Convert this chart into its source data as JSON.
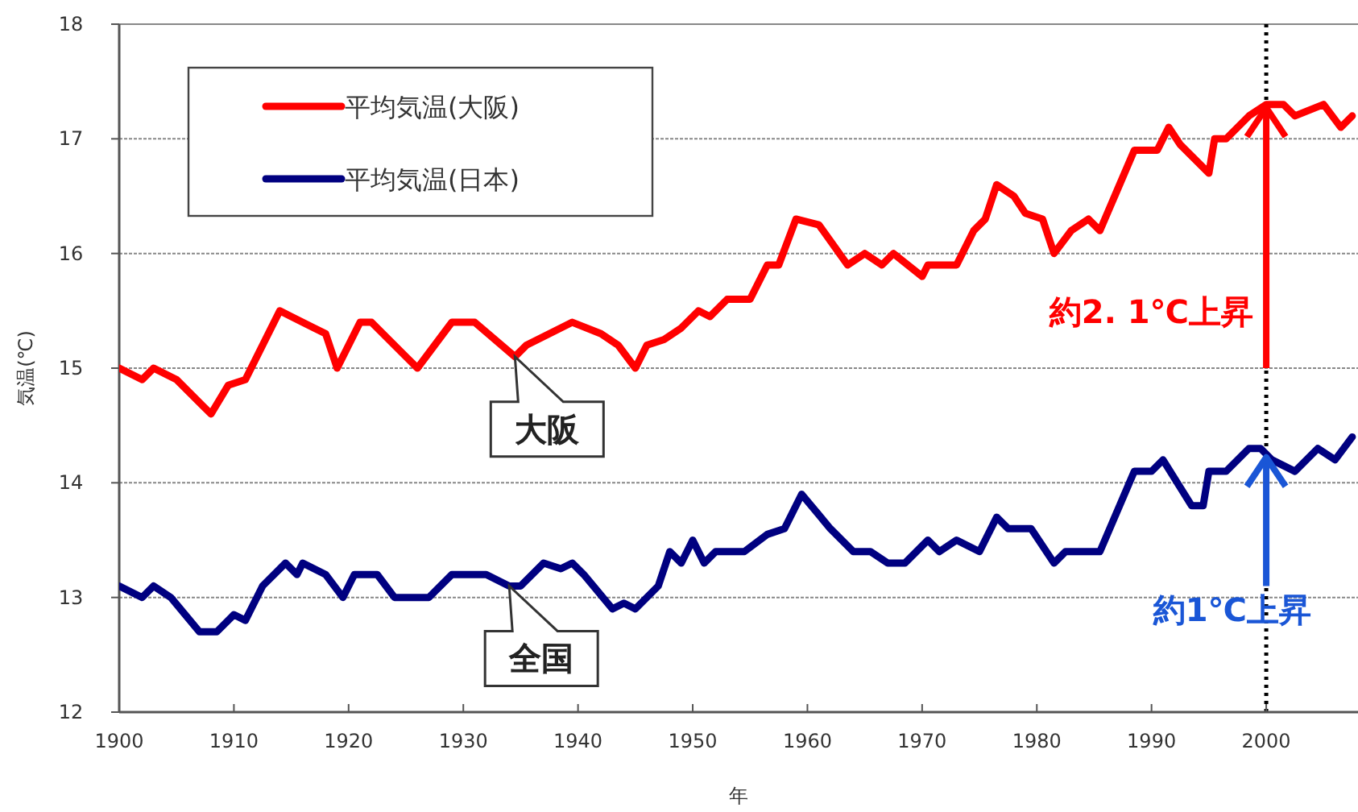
{
  "chart_data": {
    "type": "line",
    "xlabel": "年",
    "ylabel": "気温(℃)",
    "xlim": [
      1900,
      2008
    ],
    "xticks": [
      1900,
      1910,
      1920,
      1930,
      1940,
      1950,
      1960,
      1970,
      1980,
      1990,
      2000
    ],
    "ylim": [
      12,
      18
    ],
    "yticks": [
      12,
      13,
      14,
      15,
      16,
      17,
      18
    ],
    "grid": "y",
    "legend": "top left",
    "ref_lines": [
      {
        "axis": "x",
        "value": 2000,
        "color": "#000000",
        "line_style": "dotted"
      }
    ],
    "annotations": [
      {
        "text": "大阪",
        "x": 1934.5,
        "y": 15.1
      },
      {
        "text": "全国",
        "x": 1934,
        "y": 13.1
      },
      {
        "text": "約2. 1℃上昇",
        "x": 2000,
        "y": 15.0
      },
      {
        "text": "約1℃上昇",
        "x": 2000,
        "y": 13.1
      }
    ],
    "series": [
      {
        "name": "平均気温(大阪)",
        "color": "#ff0000",
        "x": [
          1900,
          1902,
          1903,
          1905,
          1908,
          1909.5,
          1911,
          1914,
          1915,
          1917,
          1918,
          1919,
          1921,
          1922,
          1926,
          1929,
          1931,
          1934.5,
          1935.5,
          1937.5,
          1939.5,
          1942,
          1943.5,
          1945,
          1946,
          1947.5,
          1949,
          1950.5,
          1951.5,
          1953,
          1955,
          1956.5,
          1957.5,
          1959,
          1961,
          1963.5,
          1965,
          1966.5,
          1967.5,
          1970,
          1970.5,
          1973,
          1974.5,
          1975.5,
          1976.5,
          1978,
          1979,
          1980.5,
          1981.5,
          1983,
          1984.5,
          1985.5,
          1987,
          1988.5,
          1990.5,
          1991.5,
          1992.5,
          1995,
          1995.5,
          1996.5,
          1998.5,
          2000,
          2001.5,
          2002.5,
          2005,
          2006.5,
          2007.5
        ],
        "values": [
          15.0,
          14.9,
          15.0,
          14.9,
          14.6,
          14.85,
          14.9,
          15.5,
          15.45,
          15.35,
          15.3,
          15.0,
          15.4,
          15.4,
          15.0,
          15.4,
          15.4,
          15.1,
          15.2,
          15.3,
          15.4,
          15.3,
          15.2,
          15.0,
          15.2,
          15.25,
          15.35,
          15.5,
          15.45,
          15.6,
          15.6,
          15.9,
          15.9,
          16.3,
          16.25,
          15.9,
          16.0,
          15.9,
          16.0,
          15.8,
          15.9,
          15.9,
          16.2,
          16.3,
          16.6,
          16.5,
          16.35,
          16.3,
          16.0,
          16.2,
          16.3,
          16.2,
          16.55,
          16.9,
          16.9,
          17.1,
          16.95,
          16.7,
          17.0,
          17.0,
          17.2,
          17.3,
          17.3,
          17.2,
          17.3,
          17.1,
          17.2
        ]
      },
      {
        "name": "平均気温(日本)",
        "color": "#000080",
        "x": [
          1900,
          1902,
          1903,
          1904.5,
          1907,
          1908.5,
          1910,
          1911,
          1912.5,
          1914.5,
          1915.5,
          1916,
          1918,
          1919.5,
          1920.5,
          1922.5,
          1924,
          1927,
          1929,
          1932,
          1934,
          1935,
          1937,
          1938.5,
          1939.5,
          1940.5,
          1943,
          1944,
          1945,
          1947,
          1948,
          1949,
          1950,
          1951,
          1952,
          1954.5,
          1956.5,
          1958,
          1959.5,
          1962,
          1964,
          1965.5,
          1967,
          1968.5,
          1970.5,
          1971.5,
          1973,
          1975,
          1976.5,
          1977.5,
          1979.5,
          1981.5,
          1982.5,
          1985.5,
          1988.5,
          1990,
          1991,
          1993.5,
          1994.5,
          1995,
          1996.5,
          1998.5,
          1999.5,
          2000.5,
          2002.5,
          2004.5,
          2006,
          2007.5
        ],
        "values": [
          13.1,
          13.0,
          13.1,
          13.0,
          12.7,
          12.7,
          12.85,
          12.8,
          13.1,
          13.3,
          13.2,
          13.3,
          13.2,
          13.0,
          13.2,
          13.2,
          13.0,
          13.0,
          13.2,
          13.2,
          13.1,
          13.1,
          13.3,
          13.25,
          13.3,
          13.2,
          12.9,
          12.95,
          12.9,
          13.1,
          13.4,
          13.3,
          13.5,
          13.3,
          13.4,
          13.4,
          13.55,
          13.6,
          13.9,
          13.6,
          13.4,
          13.4,
          13.3,
          13.3,
          13.5,
          13.4,
          13.5,
          13.4,
          13.7,
          13.6,
          13.6,
          13.3,
          13.4,
          13.4,
          14.1,
          14.1,
          14.2,
          13.8,
          13.8,
          14.1,
          14.1,
          14.3,
          14.3,
          14.2,
          14.1,
          14.3,
          14.2,
          14.4
        ]
      }
    ]
  }
}
